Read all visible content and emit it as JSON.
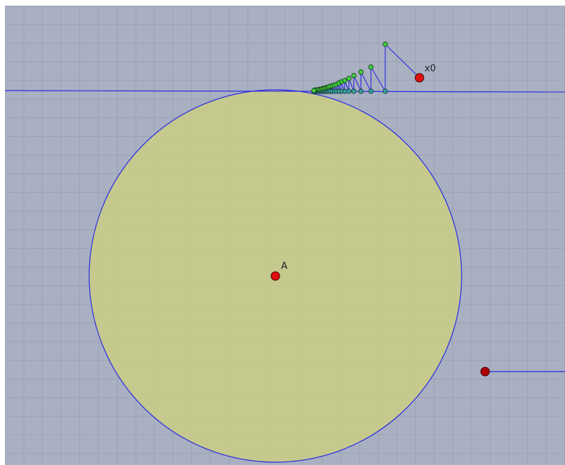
{
  "points": {
    "center_label": "A",
    "start_label": "x0"
  }
}
